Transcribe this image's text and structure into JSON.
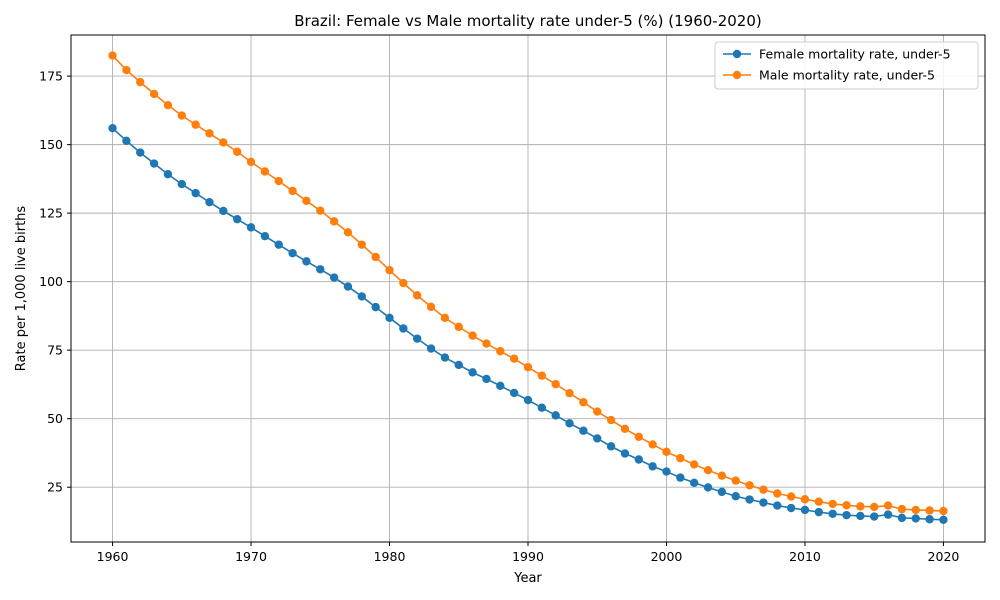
{
  "chart_data": {
    "type": "line",
    "title": "Brazil: Female vs Male mortality rate under-5 (%) (1960-2020)",
    "xlabel": "Year",
    "ylabel": "Rate per 1,000 live births",
    "xlim": [
      1957,
      2023
    ],
    "ylim": [
      5,
      190
    ],
    "xticks": [
      1960,
      1970,
      1980,
      1990,
      2000,
      2010,
      2020
    ],
    "yticks": [
      25,
      50,
      75,
      100,
      125,
      150,
      175
    ],
    "grid": true,
    "legend_position": "top-right",
    "x": [
      1960,
      1961,
      1962,
      1963,
      1964,
      1965,
      1966,
      1967,
      1968,
      1969,
      1970,
      1971,
      1972,
      1973,
      1974,
      1975,
      1976,
      1977,
      1978,
      1979,
      1980,
      1981,
      1982,
      1983,
      1984,
      1985,
      1986,
      1987,
      1988,
      1989,
      1990,
      1991,
      1992,
      1993,
      1994,
      1995,
      1996,
      1997,
      1998,
      1999,
      2000,
      2001,
      2002,
      2003,
      2004,
      2005,
      2006,
      2007,
      2008,
      2009,
      2010,
      2011,
      2012,
      2013,
      2014,
      2015,
      2016,
      2017,
      2018,
      2019,
      2020
    ],
    "series": [
      {
        "name": "Female mortality rate, under-5",
        "color": "#1f77b4",
        "values": [
          156.0,
          151.4,
          147.1,
          143.1,
          139.2,
          135.6,
          132.3,
          129.0,
          125.8,
          122.8,
          119.8,
          116.6,
          113.5,
          110.4,
          107.4,
          104.5,
          101.5,
          98.2,
          94.6,
          90.7,
          86.8,
          82.9,
          79.2,
          75.6,
          72.3,
          69.6,
          66.9,
          64.5,
          62.0,
          59.4,
          56.8,
          54.0,
          51.2,
          48.3,
          45.6,
          42.8,
          39.9,
          37.3,
          35.1,
          32.6,
          30.7,
          28.5,
          26.6,
          24.9,
          23.3,
          21.7,
          20.5,
          19.4,
          18.3,
          17.4,
          16.7,
          15.9,
          15.3,
          14.8,
          14.5,
          14.3,
          15.0,
          13.8,
          13.6,
          13.3,
          13.1
        ]
      },
      {
        "name": "Male mortality rate, under-5",
        "color": "#ff7f0e",
        "values": [
          182.5,
          177.2,
          172.8,
          168.5,
          164.4,
          160.6,
          157.3,
          154.1,
          150.8,
          147.4,
          143.7,
          140.2,
          136.7,
          133.1,
          129.5,
          125.9,
          122.0,
          118.0,
          113.5,
          109.0,
          104.2,
          99.5,
          95.0,
          90.8,
          86.8,
          83.5,
          80.3,
          77.4,
          74.6,
          71.9,
          68.8,
          65.7,
          62.6,
          59.3,
          56.0,
          52.6,
          49.5,
          46.3,
          43.4,
          40.6,
          37.9,
          35.6,
          33.3,
          31.2,
          29.2,
          27.4,
          25.7,
          24.1,
          22.7,
          21.6,
          20.6,
          19.7,
          18.9,
          18.4,
          18.0,
          17.8,
          18.3,
          17.0,
          16.7,
          16.5,
          16.3
        ]
      }
    ]
  }
}
